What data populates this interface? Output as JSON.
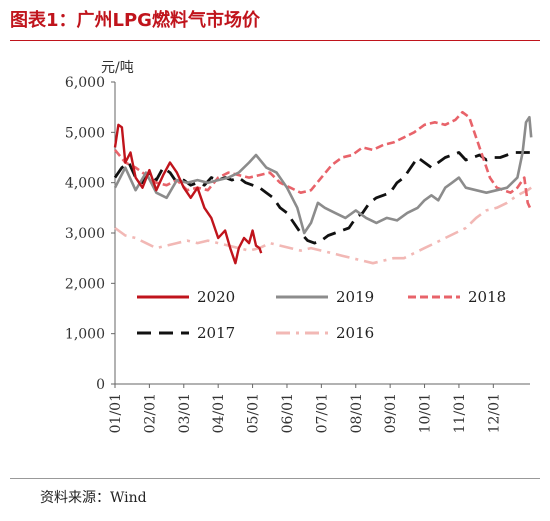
{
  "header": {
    "title": "图表1：广州LPG燃料气市场价"
  },
  "footer": {
    "source": "资料来源：Wind"
  },
  "chart_data": {
    "type": "line",
    "title": "图表1：广州LPG燃料气市场价",
    "ylabel": "元/吨",
    "ylim": [
      0,
      6000
    ],
    "yticks": [
      0,
      1000,
      2000,
      3000,
      4000,
      5000,
      6000
    ],
    "ytick_labels": [
      "0",
      "1,000",
      "2,000",
      "3,000",
      "4,000",
      "5,000",
      "6,000"
    ],
    "xlim": [
      0,
      12
    ],
    "xticks": [
      0,
      1,
      2,
      3,
      4,
      5,
      6,
      7,
      8,
      9,
      10,
      11
    ],
    "xtick_labels": [
      "01/01",
      "02/01",
      "03/01",
      "04/01",
      "05/01",
      "06/01",
      "07/01",
      "08/01",
      "09/01",
      "10/01",
      "11/01",
      "12/01"
    ],
    "grid": false,
    "legend_position": "lower-center",
    "series": [
      {
        "name": "2020",
        "color": "#c0141c",
        "style": "solid",
        "points": [
          [
            0.0,
            4700
          ],
          [
            0.1,
            5150
          ],
          [
            0.2,
            5100
          ],
          [
            0.3,
            4400
          ],
          [
            0.45,
            4600
          ],
          [
            0.6,
            4100
          ],
          [
            0.8,
            3900
          ],
          [
            1.0,
            4250
          ],
          [
            1.2,
            3850
          ],
          [
            1.4,
            4150
          ],
          [
            1.6,
            4400
          ],
          [
            1.8,
            4200
          ],
          [
            2.0,
            3900
          ],
          [
            2.2,
            3700
          ],
          [
            2.4,
            3900
          ],
          [
            2.6,
            3500
          ],
          [
            2.8,
            3300
          ],
          [
            3.0,
            2900
          ],
          [
            3.2,
            3050
          ],
          [
            3.35,
            2700
          ],
          [
            3.5,
            2400
          ],
          [
            3.6,
            2700
          ],
          [
            3.75,
            2900
          ],
          [
            3.9,
            2800
          ],
          [
            4.0,
            3050
          ],
          [
            4.1,
            2750
          ],
          [
            4.2,
            2700
          ],
          [
            4.25,
            2600
          ]
        ]
      },
      {
        "name": "2019",
        "color": "#8c8c8c",
        "style": "solid",
        "points": [
          [
            0.0,
            3900
          ],
          [
            0.3,
            4300
          ],
          [
            0.6,
            3850
          ],
          [
            0.9,
            4200
          ],
          [
            1.2,
            3800
          ],
          [
            1.5,
            3700
          ],
          [
            1.8,
            4050
          ],
          [
            2.1,
            4000
          ],
          [
            2.4,
            4050
          ],
          [
            2.7,
            4000
          ],
          [
            3.0,
            4050
          ],
          [
            3.3,
            4100
          ],
          [
            3.6,
            4200
          ],
          [
            3.9,
            4400
          ],
          [
            4.1,
            4550
          ],
          [
            4.4,
            4300
          ],
          [
            4.7,
            4200
          ],
          [
            5.0,
            3900
          ],
          [
            5.3,
            3500
          ],
          [
            5.5,
            3000
          ],
          [
            5.7,
            3200
          ],
          [
            5.9,
            3600
          ],
          [
            6.1,
            3500
          ],
          [
            6.4,
            3400
          ],
          [
            6.7,
            3300
          ],
          [
            7.0,
            3450
          ],
          [
            7.3,
            3300
          ],
          [
            7.6,
            3200
          ],
          [
            7.9,
            3300
          ],
          [
            8.2,
            3250
          ],
          [
            8.5,
            3400
          ],
          [
            8.8,
            3500
          ],
          [
            9.0,
            3650
          ],
          [
            9.2,
            3750
          ],
          [
            9.4,
            3650
          ],
          [
            9.6,
            3900
          ],
          [
            9.8,
            4000
          ],
          [
            10.0,
            4100
          ],
          [
            10.2,
            3900
          ],
          [
            10.5,
            3850
          ],
          [
            10.8,
            3800
          ],
          [
            11.1,
            3850
          ],
          [
            11.4,
            3900
          ],
          [
            11.7,
            4100
          ],
          [
            11.85,
            4600
          ],
          [
            11.95,
            5200
          ],
          [
            12.05,
            5300
          ],
          [
            12.1,
            4900
          ]
        ]
      },
      {
        "name": "2018",
        "color": "#e8636a",
        "style": "dashed",
        "points": [
          [
            0.0,
            4650
          ],
          [
            0.3,
            4400
          ],
          [
            0.6,
            4300
          ],
          [
            0.9,
            4150
          ],
          [
            1.2,
            4000
          ],
          [
            1.5,
            3950
          ],
          [
            1.8,
            4050
          ],
          [
            2.1,
            3850
          ],
          [
            2.4,
            3900
          ],
          [
            2.7,
            3850
          ],
          [
            3.0,
            4100
          ],
          [
            3.3,
            4200
          ],
          [
            3.6,
            4150
          ],
          [
            3.9,
            4100
          ],
          [
            4.2,
            4150
          ],
          [
            4.5,
            4200
          ],
          [
            4.8,
            4000
          ],
          [
            5.1,
            3900
          ],
          [
            5.4,
            3800
          ],
          [
            5.7,
            3850
          ],
          [
            6.0,
            4100
          ],
          [
            6.3,
            4350
          ],
          [
            6.6,
            4500
          ],
          [
            6.9,
            4550
          ],
          [
            7.2,
            4700
          ],
          [
            7.5,
            4650
          ],
          [
            7.8,
            4750
          ],
          [
            8.1,
            4800
          ],
          [
            8.4,
            4900
          ],
          [
            8.7,
            5000
          ],
          [
            9.0,
            5150
          ],
          [
            9.3,
            5200
          ],
          [
            9.6,
            5150
          ],
          [
            9.9,
            5250
          ],
          [
            10.1,
            5400
          ],
          [
            10.3,
            5300
          ],
          [
            10.5,
            4900
          ],
          [
            10.7,
            4500
          ],
          [
            10.9,
            4100
          ],
          [
            11.1,
            3900
          ],
          [
            11.3,
            3850
          ],
          [
            11.5,
            3800
          ],
          [
            11.7,
            3900
          ],
          [
            11.9,
            4100
          ],
          [
            12.0,
            3600
          ],
          [
            12.1,
            3450
          ]
        ]
      },
      {
        "name": "2017",
        "color": "#111111",
        "style": "longdash",
        "points": [
          [
            0.0,
            4100
          ],
          [
            0.2,
            4300
          ],
          [
            0.4,
            4400
          ],
          [
            0.6,
            4100
          ],
          [
            0.8,
            4000
          ],
          [
            1.0,
            4200
          ],
          [
            1.2,
            4050
          ],
          [
            1.4,
            4300
          ],
          [
            1.6,
            4200
          ],
          [
            1.8,
            4000
          ],
          [
            2.0,
            4050
          ],
          [
            2.2,
            3950
          ],
          [
            2.4,
            4000
          ],
          [
            2.6,
            3950
          ],
          [
            2.8,
            4100
          ],
          [
            3.0,
            4050
          ],
          [
            3.2,
            4100
          ],
          [
            3.4,
            4050
          ],
          [
            3.6,
            4100
          ],
          [
            3.8,
            4000
          ],
          [
            4.0,
            3950
          ],
          [
            4.2,
            3900
          ],
          [
            4.4,
            3800
          ],
          [
            4.6,
            3700
          ],
          [
            4.8,
            3500
          ],
          [
            5.0,
            3400
          ],
          [
            5.2,
            3200
          ],
          [
            5.4,
            3000
          ],
          [
            5.6,
            2850
          ],
          [
            5.8,
            2800
          ],
          [
            6.0,
            2850
          ],
          [
            6.2,
            2950
          ],
          [
            6.4,
            3000
          ],
          [
            6.6,
            3050
          ],
          [
            6.8,
            3100
          ],
          [
            7.0,
            3300
          ],
          [
            7.2,
            3400
          ],
          [
            7.4,
            3600
          ],
          [
            7.6,
            3700
          ],
          [
            7.8,
            3750
          ],
          [
            8.0,
            3800
          ],
          [
            8.2,
            4000
          ],
          [
            8.4,
            4100
          ],
          [
            8.6,
            4300
          ],
          [
            8.8,
            4500
          ],
          [
            9.0,
            4400
          ],
          [
            9.2,
            4300
          ],
          [
            9.4,
            4400
          ],
          [
            9.6,
            4500
          ],
          [
            9.8,
            4550
          ],
          [
            10.0,
            4600
          ],
          [
            10.2,
            4450
          ],
          [
            10.4,
            4500
          ],
          [
            10.6,
            4550
          ],
          [
            10.8,
            4450
          ],
          [
            11.0,
            4500
          ],
          [
            11.2,
            4500
          ],
          [
            11.4,
            4550
          ],
          [
            11.6,
            4600
          ],
          [
            11.8,
            4600
          ],
          [
            12.0,
            4600
          ],
          [
            12.1,
            4600
          ]
        ]
      },
      {
        "name": "2016",
        "color": "#f2b8b5",
        "style": "dashdot",
        "points": [
          [
            0.0,
            3100
          ],
          [
            0.3,
            2950
          ],
          [
            0.6,
            2900
          ],
          [
            0.9,
            2800
          ],
          [
            1.2,
            2700
          ],
          [
            1.5,
            2750
          ],
          [
            1.8,
            2800
          ],
          [
            2.1,
            2850
          ],
          [
            2.4,
            2800
          ],
          [
            2.7,
            2850
          ],
          [
            3.0,
            2800
          ],
          [
            3.3,
            2750
          ],
          [
            3.6,
            2700
          ],
          [
            3.9,
            2650
          ],
          [
            4.2,
            2700
          ],
          [
            4.5,
            2800
          ],
          [
            4.8,
            2750
          ],
          [
            5.1,
            2700
          ],
          [
            5.4,
            2650
          ],
          [
            5.7,
            2700
          ],
          [
            6.0,
            2650
          ],
          [
            6.3,
            2600
          ],
          [
            6.6,
            2550
          ],
          [
            6.9,
            2500
          ],
          [
            7.2,
            2450
          ],
          [
            7.5,
            2400
          ],
          [
            7.8,
            2450
          ],
          [
            8.1,
            2500
          ],
          [
            8.4,
            2500
          ],
          [
            8.7,
            2600
          ],
          [
            9.0,
            2700
          ],
          [
            9.3,
            2800
          ],
          [
            9.6,
            2900
          ],
          [
            9.9,
            3000
          ],
          [
            10.2,
            3100
          ],
          [
            10.5,
            3300
          ],
          [
            10.8,
            3450
          ],
          [
            11.1,
            3500
          ],
          [
            11.4,
            3600
          ],
          [
            11.7,
            3750
          ],
          [
            12.0,
            3850
          ],
          [
            12.1,
            3900
          ]
        ]
      }
    ]
  }
}
